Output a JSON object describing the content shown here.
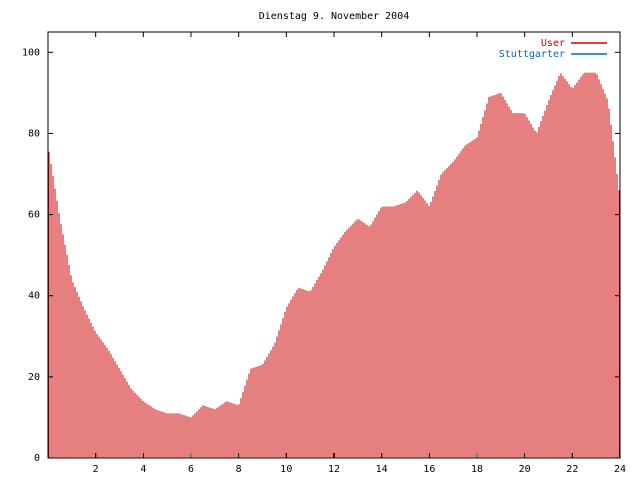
{
  "chart_data": {
    "type": "bar",
    "title": "Dienstag 9. November 2004",
    "xlim": [
      0,
      24
    ],
    "ylim": [
      0,
      105
    ],
    "xticks": [
      2,
      4,
      6,
      8,
      10,
      12,
      14,
      16,
      18,
      20,
      22,
      24
    ],
    "yticks": [
      0,
      20,
      40,
      60,
      80,
      100
    ],
    "legend_position": "top-right",
    "series": [
      {
        "name": "User",
        "color": "#cc0000",
        "x": [
          0,
          0.5,
          1,
          1.5,
          2,
          2.5,
          3,
          3.5,
          4,
          4.5,
          5,
          5.5,
          6,
          6.5,
          7,
          7.5,
          8,
          8.5,
          9,
          9.5,
          10,
          10.5,
          11,
          11.5,
          12,
          12.5,
          13,
          13.5,
          14,
          14.5,
          15,
          15.5,
          16,
          16.5,
          17,
          17.5,
          18,
          18.5,
          19,
          19.5,
          20,
          20.5,
          21,
          21.5,
          22,
          22.5,
          23,
          23.5,
          24
        ],
        "values": [
          77,
          59,
          44,
          37,
          31,
          27,
          22,
          17,
          14,
          12,
          11,
          11,
          10,
          13,
          12,
          14,
          13,
          22,
          23,
          28,
          37,
          42,
          41,
          46,
          52,
          56,
          59,
          57,
          62,
          62,
          63,
          66,
          62,
          70,
          73,
          77,
          79,
          89,
          90,
          85,
          85,
          80,
          88,
          95,
          91,
          95,
          95,
          88,
          64
        ]
      },
      {
        "name": "Stuttgarter",
        "color": "#0066cc",
        "x": [
          0,
          0.5,
          1,
          1.5,
          2,
          2.5,
          3,
          3.5,
          4,
          4.5,
          5,
          5.5,
          6,
          6.5,
          7,
          7.5,
          8,
          8.5,
          9,
          9.5,
          10,
          10.5,
          11,
          11.5,
          12,
          12.5,
          13,
          13.5,
          14,
          14.5,
          15,
          15.5,
          16,
          16.5,
          17,
          17.5,
          18,
          18.5,
          19,
          19.5,
          20,
          20.5,
          21,
          21.5,
          22,
          22.5,
          23,
          23.5,
          24
        ],
        "values": [
          0,
          0,
          0,
          0,
          0,
          0,
          0,
          0,
          0,
          0,
          0,
          0,
          0,
          0,
          0,
          0,
          0,
          0,
          0,
          0,
          0,
          0,
          0,
          0,
          0,
          0,
          0,
          0,
          0,
          0,
          0,
          0,
          0,
          0,
          0,
          0,
          0,
          0,
          0,
          0,
          0,
          0,
          0,
          0,
          0,
          0,
          0,
          0,
          0
        ]
      }
    ]
  }
}
